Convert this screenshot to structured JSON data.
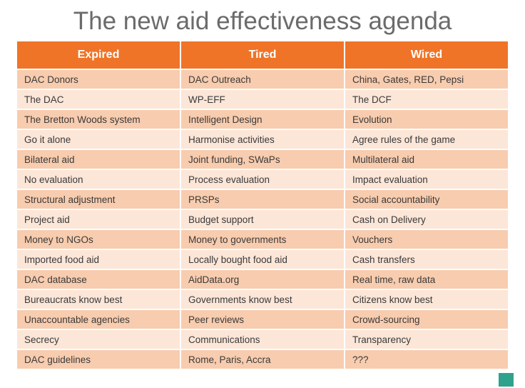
{
  "title": "The new aid effectiveness agenda",
  "colors": {
    "header_bg": "#ef7428",
    "row_odd": "#f8ccae",
    "row_even": "#fce6d8",
    "title_color": "#6b6b6b",
    "accent_square": "#2fa28e"
  },
  "table": {
    "headers": [
      "Expired",
      "Tired",
      "Wired"
    ],
    "rows": [
      [
        "DAC Donors",
        "DAC Outreach",
        "China, Gates, RED, Pepsi"
      ],
      [
        "The DAC",
        "WP-EFF",
        "The DCF"
      ],
      [
        "The Bretton Woods system",
        "Intelligent Design",
        "Evolution"
      ],
      [
        "Go it alone",
        "Harmonise activities",
        "Agree rules of the game"
      ],
      [
        "Bilateral aid",
        "Joint funding, SWaPs",
        "Multilateral aid"
      ],
      [
        "No evaluation",
        "Process evaluation",
        "Impact evaluation"
      ],
      [
        "Structural adjustment",
        "PRSPs",
        "Social accountability"
      ],
      [
        "Project aid",
        "Budget support",
        "Cash on Delivery"
      ],
      [
        "Money to NGOs",
        "Money to governments",
        "Vouchers"
      ],
      [
        "Imported food aid",
        "Locally bought food aid",
        "Cash transfers"
      ],
      [
        "DAC database",
        "AidData.org",
        "Real time, raw data"
      ],
      [
        "Bureaucrats know best",
        "Governments know best",
        "Citizens know best"
      ],
      [
        "Unaccountable agencies",
        "Peer reviews",
        "Crowd-sourcing"
      ],
      [
        "Secrecy",
        "Communications",
        "Transparency"
      ],
      [
        "DAC guidelines",
        "Rome, Paris, Accra",
        "???"
      ]
    ]
  }
}
